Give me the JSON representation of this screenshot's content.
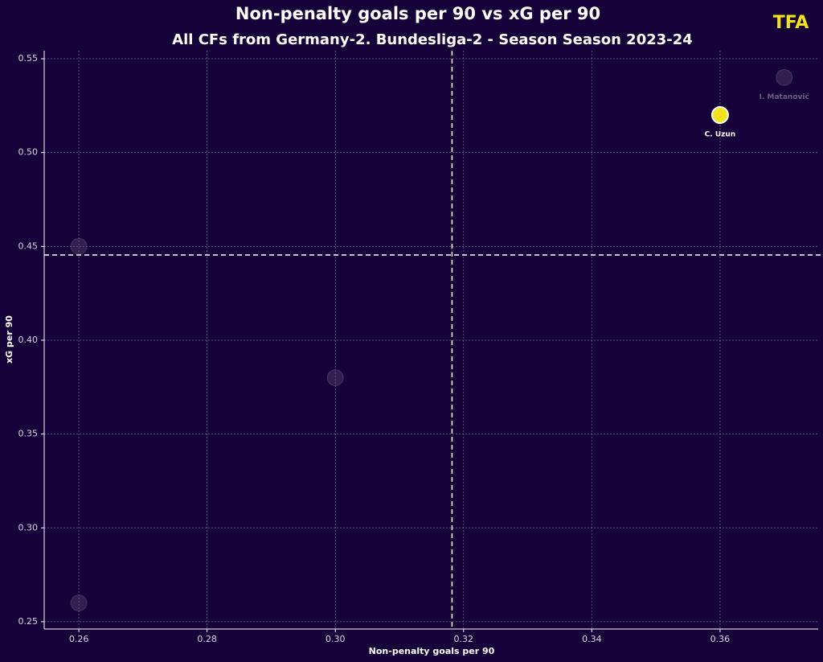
{
  "chart_data": {
    "type": "scatter",
    "title": "Non-penalty goals per 90 vs xG per 90",
    "subtitle": "All CFs from Germany-2. Bundesliga-2 - Season Season 2023-24",
    "x_label": "Non-penalty goals per 90",
    "y_label": "xG per 90",
    "logo": "TFA",
    "x": [
      0.26,
      0.26,
      0.3,
      0.36,
      0.37
    ],
    "values": [
      0.45,
      0.26,
      0.38,
      0.52,
      0.54
    ],
    "point_labels": [
      null,
      null,
      null,
      "C. Uzun",
      "I. Matanović"
    ],
    "point_colors": [
      "#6a5a80",
      "#6a5a80",
      "#6a5a80",
      "#f2e21c",
      "#6a5a80"
    ],
    "highlight": [
      false,
      false,
      false,
      true,
      false
    ],
    "reference_lines": {
      "x": 0.3182,
      "y": 0.4454
    },
    "xlim": [
      0.2546,
      0.3753
    ],
    "ylim": [
      0.2461,
      0.5543
    ],
    "xticks": [
      0.26,
      0.28,
      {
        "value": 0.3,
        "label": "0.30"
      },
      0.32,
      0.34,
      0.36
    ],
    "yticks": [
      0.25,
      {
        "value": 0.3,
        "label": "0.30"
      },
      0.35,
      {
        "value": 0.4,
        "label": "0.40"
      },
      0.45,
      {
        "value": 0.5,
        "label": "0.50"
      },
      0.55
    ],
    "grid": true
  }
}
